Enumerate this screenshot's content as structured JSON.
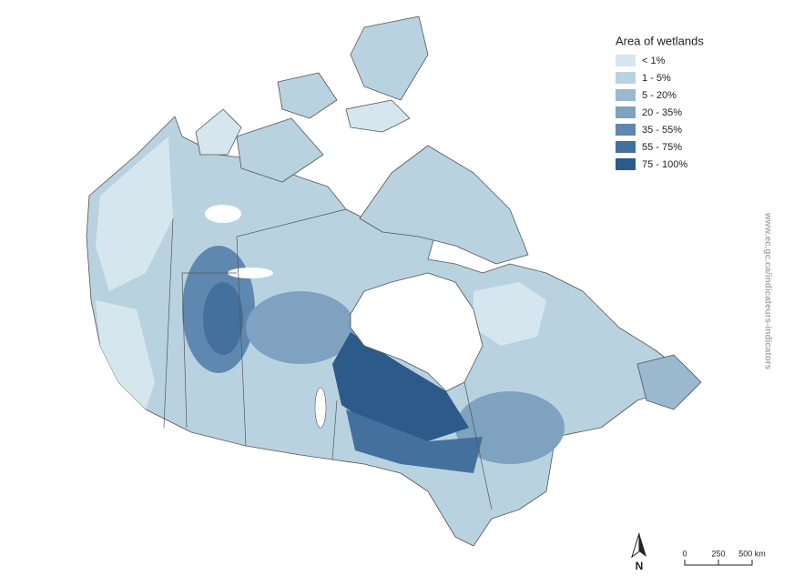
{
  "legend": {
    "title": "Area of wetlands",
    "items": [
      {
        "label": "< 1%",
        "color": "#d6e6ee"
      },
      {
        "label": "1 - 5%",
        "color": "#b9d2e0"
      },
      {
        "label": "5 - 20%",
        "color": "#9ab9cf"
      },
      {
        "label": "20 - 35%",
        "color": "#7ea2c0"
      },
      {
        "label": "35 - 55%",
        "color": "#5f88b0"
      },
      {
        "label": "55 - 75%",
        "color": "#43709d"
      },
      {
        "label": "75 - 100%",
        "color": "#2c5b8a"
      }
    ]
  },
  "source_url": "www.ec.gc.ca/indicateurs-indicators",
  "north_label": "N",
  "scale_bar": {
    "labels": [
      "0",
      "250",
      "500 km"
    ]
  }
}
